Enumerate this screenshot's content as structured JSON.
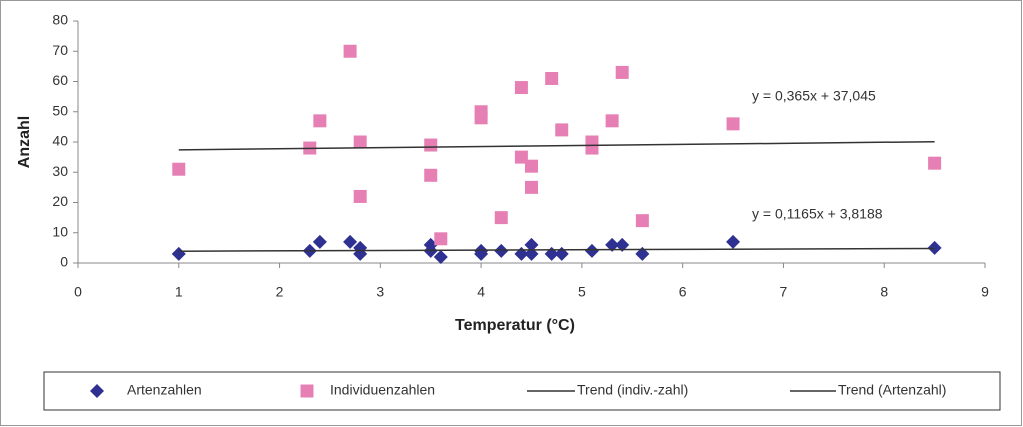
{
  "chart_data": {
    "type": "scatter",
    "xlabel": "Temperatur (°C)",
    "ylabel": "Anzahl",
    "xlim": [
      0,
      9
    ],
    "ylim": [
      0,
      80
    ],
    "xticks": [
      0,
      1,
      2,
      3,
      4,
      5,
      6,
      7,
      8,
      9
    ],
    "yticks": [
      0,
      10,
      20,
      30,
      40,
      50,
      60,
      70,
      80
    ],
    "grid": false,
    "legend": "bottom",
    "series": [
      {
        "name": "Artenzahlen",
        "color": "#2e3192",
        "marker": "diamond",
        "x": [
          1,
          2.3,
          2.4,
          2.7,
          2.8,
          2.8,
          3.5,
          3.5,
          3.6,
          4,
          4,
          4.2,
          4.4,
          4.5,
          4.5,
          4.7,
          4.8,
          5.1,
          5.3,
          5.4,
          5.6,
          6.5,
          8.5
        ],
        "values": [
          3,
          4,
          7,
          7,
          5,
          3,
          6,
          4,
          2,
          3,
          4,
          4,
          3,
          6,
          3,
          3,
          3,
          4,
          6,
          6,
          3,
          7,
          5
        ]
      },
      {
        "name": "Individuenzahlen",
        "color": "#e680b4",
        "marker": "square",
        "x": [
          1,
          2.3,
          2.4,
          2.7,
          2.8,
          2.8,
          3.5,
          3.5,
          3.6,
          4,
          4,
          4.2,
          4.4,
          4.4,
          4.5,
          4.5,
          4.7,
          4.8,
          5.1,
          5.1,
          5.3,
          5.4,
          5.6,
          6.5,
          8.5
        ],
        "values": [
          31,
          38,
          47,
          70,
          40,
          22,
          39,
          29,
          8,
          50,
          48,
          15,
          58,
          35,
          32,
          25,
          61,
          44,
          40,
          38,
          47,
          63,
          14,
          46,
          33
        ]
      },
      {
        "name": "Trend (indiv.-zahl)",
        "color": "#333333",
        "marker": "line",
        "x": [
          1,
          8.5
        ],
        "values": [
          37.4,
          40.1
        ]
      },
      {
        "name": "Trend (Artenzahl)",
        "color": "#333333",
        "marker": "line",
        "x": [
          1,
          8.5
        ],
        "values": [
          3.9,
          4.8
        ]
      }
    ],
    "annotations": [
      "y = 0,365x + 37,045",
      "y = 0,1165x + 3,8188"
    ]
  }
}
